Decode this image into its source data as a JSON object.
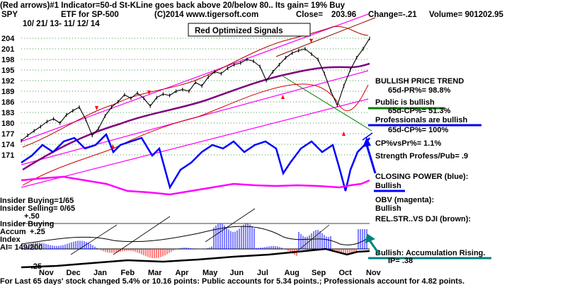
{
  "header": {
    "line1": "(Red arrows)#1 Indicator=50-d St-KLine goes back above 20/below 80..  Its gain= 19% Buy",
    "ticker": "SPY",
    "etf": "ETF for SP-500",
    "copyright": "(C)2014 www.tigersoft.com",
    "close_label": "Close=",
    "close": "203.96",
    "change": "Change=-.21",
    "volume": "Volume= 901202.95",
    "date_range": "10/ 21/ 13- 11/ 12/ 14",
    "signals_box": "Red Optimized Signals"
  },
  "annotations": {
    "bullish_trend": "BULLISH PRICE TREND",
    "pr65": "65d-PR%= 98.8%",
    "public": "Public is bullish",
    "public_cp": "65d-CP%= 51.3%",
    "pros": "Professionals are bullish",
    "pros_cp": "65d-CP%= 100%",
    "cp_vs_pr": "CP%vsPr%=  1.1%",
    "strength": "Strength Profess/Pub= .9",
    "closing_power": "CLOSING POWER (blue):",
    "closing_power_state": "Bullish",
    "obv": "OBV (magenta):",
    "obv_state": "Bullish",
    "rel_str": "REL.STR..VS DJI (brown):",
    "accum": "Bullish: Accumulation Rising.",
    "ip": "IP= .38",
    "insider_buying": "Insider Buying=1/65",
    "insider_selling": "Insider Selling= 0/65",
    "ind_title1": "Insider Buying",
    "ind_title2": "Accum",
    "ind_title3": "Index",
    "ai": "AI= 149/200",
    "ind_p50": "+.50",
    "ind_p25": "+.25",
    "ind_m25": "-.25",
    "footer": "For Last 65 days' stock changed  5.4% or  10.16 points:  Public accounts for  5.34 points.;  Professionals account for  4.82 points."
  },
  "colors": {
    "price": "#000000",
    "closing_power": "#0000ff",
    "obv": "#ff00ff",
    "ma": "#800080",
    "band": "#ff0000",
    "channel": "#ff00ff",
    "accum": "#0000ff",
    "rel_str": "#8b4513",
    "grid": "#008000",
    "public_underline": "#008000",
    "pros_underline": "#0000ff",
    "accum_underline": "#008080"
  },
  "chart_data": {
    "type": "line",
    "y_ticks": [
      "204",
      "201",
      "198",
      "195",
      "192",
      "189",
      "186",
      "183",
      "180",
      "177",
      "174",
      "171"
    ],
    "ylim": [
      171,
      204
    ],
    "x_labels": [
      "Nov",
      "Dec",
      "Jan",
      "Feb",
      "Mar",
      "Apr",
      "May",
      "Jun",
      "Jul",
      "Aug",
      "Sep",
      "Oct",
      "Nov"
    ],
    "series": [
      {
        "values": [
          175.0,
          176.5,
          177.8,
          179.0,
          180.4,
          181.2,
          180.0,
          182.3,
          183.5,
          184.5,
          181.0,
          176.5,
          178.5,
          182.0,
          184.5,
          186.0,
          188.0,
          187.0,
          188.5,
          187.0,
          184.8,
          187.2,
          188.2,
          187.8,
          189.0,
          189.5,
          189.0,
          191.5,
          190.5,
          193.0,
          194.5,
          194.0,
          195.5,
          196.5,
          197.0,
          198.0,
          197.5,
          196.0,
          192.0,
          194.5,
          196.5,
          198.5,
          199.8,
          200.5,
          201.0,
          199.5,
          198.0,
          194.0,
          189.0,
          185.0,
          190.5,
          195.0,
          198.5,
          201.0,
          203.96
        ]
      }
    ]
  }
}
